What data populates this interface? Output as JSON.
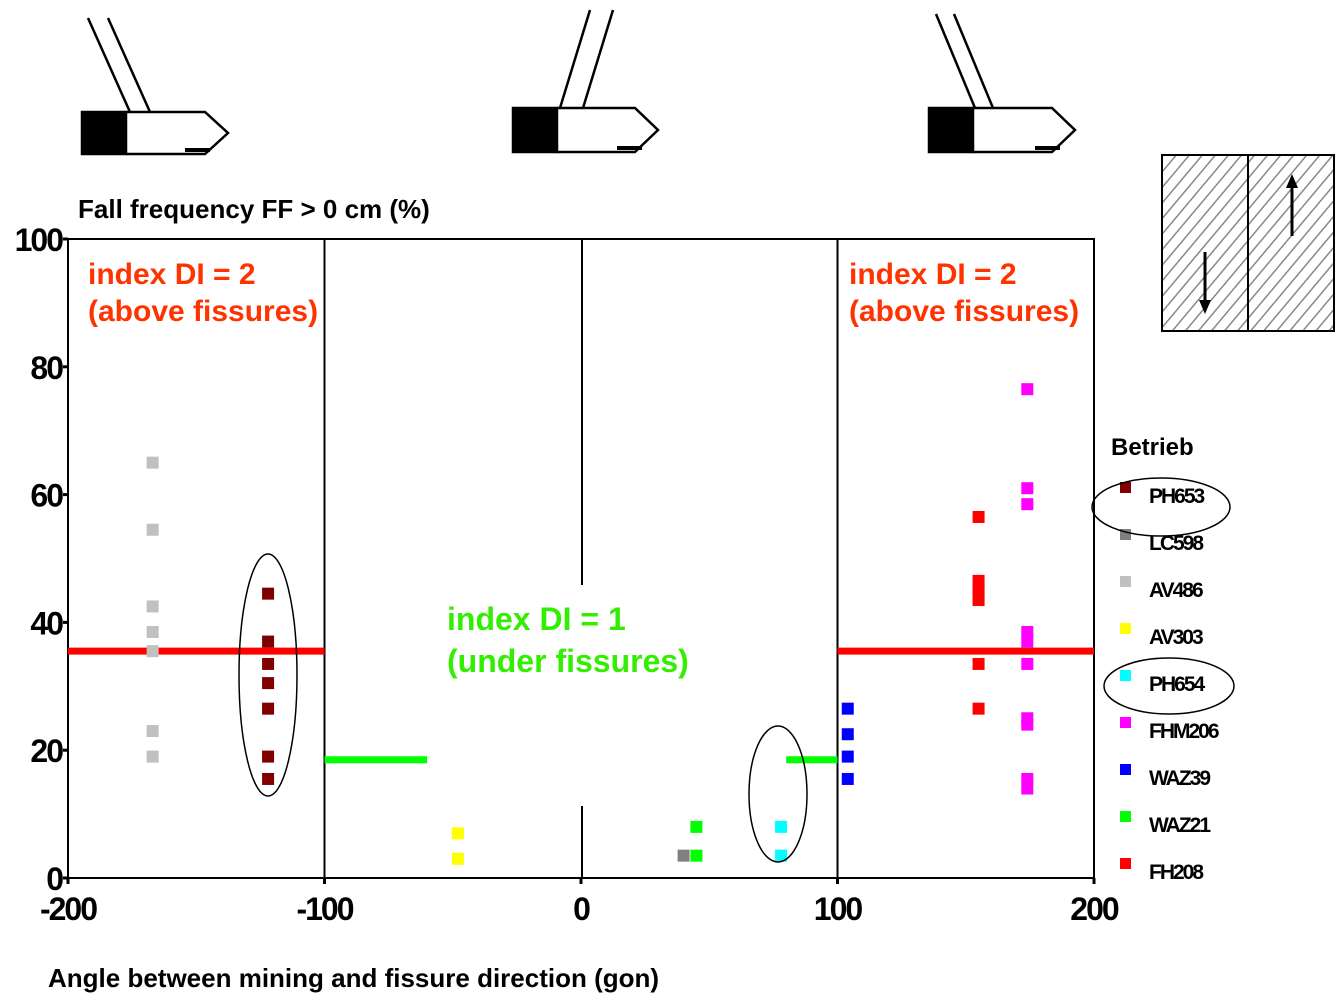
{
  "chart_data": {
    "type": "scatter",
    "title": "Fall frequency FF > 0 cm (%)",
    "xlabel": "Angle between mining and fissure direction (gon)",
    "ylabel": "Fall frequency FF > 0 cm (%)",
    "xlim": [
      -200,
      200
    ],
    "ylim": [
      0,
      100
    ],
    "x_ticks": [
      "-200",
      "-100",
      "0",
      "100",
      "200"
    ],
    "y_ticks": [
      "0",
      "20",
      "40",
      "60",
      "80",
      "100"
    ],
    "grid": false,
    "legend_title": "Betrieb",
    "legend_placement": "right",
    "series": [
      {
        "name": "PH653",
        "color": "#800000",
        "circled": true,
        "points": [
          [
            -122,
            44.5
          ],
          [
            -122,
            37
          ],
          [
            -122,
            33.5
          ],
          [
            -122,
            30.5
          ],
          [
            -122,
            26.5
          ],
          [
            -122,
            19
          ],
          [
            -122,
            15.5
          ]
        ]
      },
      {
        "name": "LC598",
        "color": "#808080",
        "circled": false,
        "points": [
          [
            40,
            3.5
          ]
        ]
      },
      {
        "name": "AV486",
        "color": "#c0c0c0",
        "circled": false,
        "points": [
          [
            -167,
            65
          ],
          [
            -167,
            54.5
          ],
          [
            -167,
            42.5
          ],
          [
            -167,
            38.5
          ],
          [
            -167,
            35.5
          ],
          [
            -167,
            23
          ],
          [
            -167,
            19
          ]
        ]
      },
      {
        "name": "AV303",
        "color": "#ffff00",
        "circled": false,
        "points": [
          [
            -48,
            7
          ],
          [
            -48,
            3
          ]
        ]
      },
      {
        "name": "PH654",
        "color": "#00ffff",
        "circled": true,
        "points": [
          [
            78,
            8
          ],
          [
            78,
            3.5
          ]
        ]
      },
      {
        "name": "FHM206",
        "color": "#ff00ff",
        "circled": false,
        "points": [
          [
            174,
            76.5
          ],
          [
            174,
            61
          ],
          [
            174,
            58.5
          ],
          [
            174,
            38.5
          ],
          [
            174,
            37
          ],
          [
            174,
            33.5
          ],
          [
            174,
            25
          ],
          [
            174,
            24
          ],
          [
            174,
            15.5
          ],
          [
            174,
            14
          ]
        ]
      },
      {
        "name": "WAZ39",
        "color": "#0000ff",
        "circled": false,
        "points": [
          [
            104,
            26.5
          ],
          [
            104,
            22.5
          ],
          [
            104,
            19
          ],
          [
            104,
            15.5
          ]
        ]
      },
      {
        "name": "WAZ21",
        "color": "#00ff00",
        "circled": false,
        "points": [
          [
            45,
            8
          ],
          [
            45,
            3.5
          ]
        ]
      },
      {
        "name": "FH208",
        "color": "#ff0000",
        "circled": false,
        "points": [
          [
            155,
            56.5
          ],
          [
            155,
            46.5
          ],
          [
            155,
            45
          ],
          [
            155,
            43.5
          ],
          [
            155,
            33.5
          ],
          [
            155,
            26.5
          ]
        ]
      }
    ],
    "mean_lines": [
      {
        "from": -200,
        "to": -100,
        "y": 35.5,
        "color": "#ff0000"
      },
      {
        "from": 100,
        "to": 200,
        "y": 35.5,
        "color": "#ff0000"
      },
      {
        "from": -100,
        "to": -60,
        "y": 18.5,
        "color": "#00ff00"
      },
      {
        "from": 80,
        "to": 100,
        "y": 18.5,
        "color": "#00ff00"
      }
    ],
    "vertical_lines": [
      -100,
      100
    ],
    "annotations": [
      {
        "line1": "index DI = 2",
        "line2": "(above fissures)",
        "color": "#ff3300"
      },
      {
        "line1": "index DI = 1",
        "line2": "(under fissures)",
        "color": "#33ee00"
      },
      {
        "line1": "index DI = 2",
        "line2": "(above fissures)",
        "color": "#ff3300"
      }
    ]
  },
  "colors": {
    "axis": "#000000",
    "red_mean": "#ff0000",
    "green_mean": "#00ff00"
  },
  "icons": [
    "shearer-icon",
    "shearer-icon",
    "shearer-icon",
    "fissure-block-icon"
  ]
}
